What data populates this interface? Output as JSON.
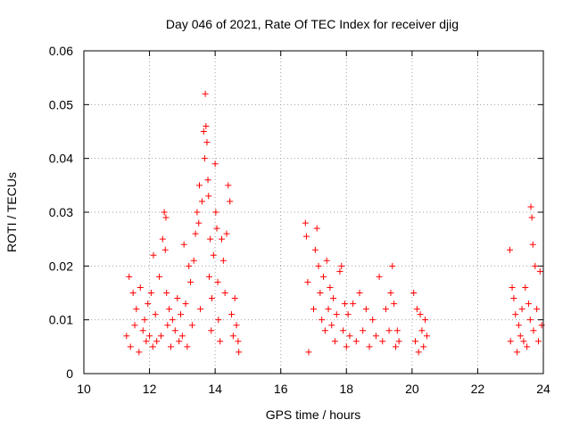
{
  "chart_data": {
    "type": "scatter",
    "title": "Day 046 of 2021, Rate Of TEC Index for receiver djig",
    "xlabel": "GPS time / hours",
    "ylabel": "ROTI / TECUs",
    "xlim": [
      10,
      24
    ],
    "ylim": [
      0,
      0.06
    ],
    "xticks": [
      10,
      12,
      14,
      16,
      18,
      20,
      22,
      24
    ],
    "yticks": [
      0,
      0.01,
      0.02,
      0.03,
      0.04,
      0.05,
      0.06
    ],
    "xtick_labels": [
      "10",
      "12",
      "14",
      "16",
      "18",
      "20",
      "22",
      "24"
    ],
    "ytick_labels": [
      "0",
      "0.01",
      "0.02",
      "0.03",
      "0.04",
      "0.05",
      "0.06"
    ],
    "grid": true,
    "marker": "+",
    "color": "#ff0000",
    "series": [
      {
        "name": "ROTI",
        "x": [
          11.3,
          11.38,
          11.42,
          11.5,
          11.55,
          11.6,
          11.68,
          11.72,
          11.8,
          11.85,
          11.9,
          11.95,
          12.0,
          12.05,
          12.1,
          12.12,
          12.18,
          12.22,
          12.3,
          12.35,
          12.4,
          12.45,
          12.48,
          12.5,
          12.52,
          12.55,
          12.6,
          12.65,
          12.7,
          12.78,
          12.85,
          12.9,
          12.95,
          13.0,
          13.05,
          13.1,
          13.15,
          13.2,
          13.25,
          13.3,
          13.35,
          13.4,
          13.45,
          13.5,
          13.52,
          13.55,
          13.6,
          13.65,
          13.68,
          13.7,
          13.72,
          13.75,
          13.78,
          13.8,
          13.82,
          13.85,
          13.88,
          13.9,
          13.95,
          14.0,
          14.02,
          14.05,
          14.08,
          14.1,
          14.15,
          14.2,
          14.25,
          14.3,
          14.35,
          14.4,
          14.45,
          14.5,
          14.55,
          14.6,
          14.65,
          14.7,
          14.72,
          16.75,
          16.78,
          16.82,
          16.85,
          17.0,
          17.05,
          17.1,
          17.15,
          17.2,
          17.25,
          17.3,
          17.35,
          17.4,
          17.45,
          17.5,
          17.55,
          17.6,
          17.65,
          17.7,
          17.8,
          17.85,
          17.9,
          17.95,
          18.0,
          18.05,
          18.1,
          18.2,
          18.3,
          18.4,
          18.5,
          18.6,
          18.7,
          18.8,
          18.9,
          19.0,
          19.1,
          19.2,
          19.3,
          19.35,
          19.4,
          19.45,
          19.5,
          19.55,
          19.6,
          20.05,
          20.1,
          20.15,
          20.2,
          20.25,
          20.3,
          20.35,
          20.4,
          20.45,
          22.98,
          23.0,
          23.05,
          23.1,
          23.15,
          23.2,
          23.25,
          23.3,
          23.35,
          23.4,
          23.45,
          23.5,
          23.55,
          23.6,
          23.62,
          23.65,
          23.68,
          23.7,
          23.75,
          23.8,
          23.85,
          23.9,
          23.95
        ],
        "y": [
          0.007,
          0.018,
          0.005,
          0.015,
          0.009,
          0.012,
          0.004,
          0.016,
          0.008,
          0.01,
          0.006,
          0.013,
          0.007,
          0.015,
          0.005,
          0.022,
          0.011,
          0.006,
          0.018,
          0.007,
          0.025,
          0.03,
          0.023,
          0.029,
          0.015,
          0.009,
          0.012,
          0.005,
          0.01,
          0.008,
          0.014,
          0.006,
          0.011,
          0.007,
          0.024,
          0.013,
          0.005,
          0.02,
          0.017,
          0.009,
          0.021,
          0.026,
          0.03,
          0.028,
          0.035,
          0.012,
          0.032,
          0.045,
          0.04,
          0.052,
          0.046,
          0.043,
          0.036,
          0.033,
          0.018,
          0.025,
          0.008,
          0.014,
          0.022,
          0.039,
          0.03,
          0.027,
          0.017,
          0.01,
          0.006,
          0.025,
          0.021,
          0.015,
          0.026,
          0.035,
          0.032,
          0.011,
          0.007,
          0.014,
          0.009,
          0.006,
          0.004,
          0.028,
          0.0255,
          0.017,
          0.004,
          0.012,
          0.023,
          0.027,
          0.02,
          0.015,
          0.01,
          0.018,
          0.008,
          0.021,
          0.012,
          0.016,
          0.009,
          0.014,
          0.006,
          0.011,
          0.019,
          0.02,
          0.008,
          0.013,
          0.005,
          0.011,
          0.007,
          0.013,
          0.006,
          0.015,
          0.008,
          0.012,
          0.005,
          0.01,
          0.007,
          0.018,
          0.006,
          0.012,
          0.008,
          0.015,
          0.02,
          0.013,
          0.005,
          0.008,
          0.006,
          0.015,
          0.006,
          0.012,
          0.004,
          0.011,
          0.008,
          0.005,
          0.01,
          0.007,
          0.023,
          0.006,
          0.016,
          0.014,
          0.011,
          0.004,
          0.009,
          0.007,
          0.012,
          0.006,
          0.016,
          0.005,
          0.013,
          0.01,
          0.031,
          0.029,
          0.024,
          0.008,
          0.02,
          0.012,
          0.006,
          0.019,
          0.009
        ]
      }
    ]
  }
}
